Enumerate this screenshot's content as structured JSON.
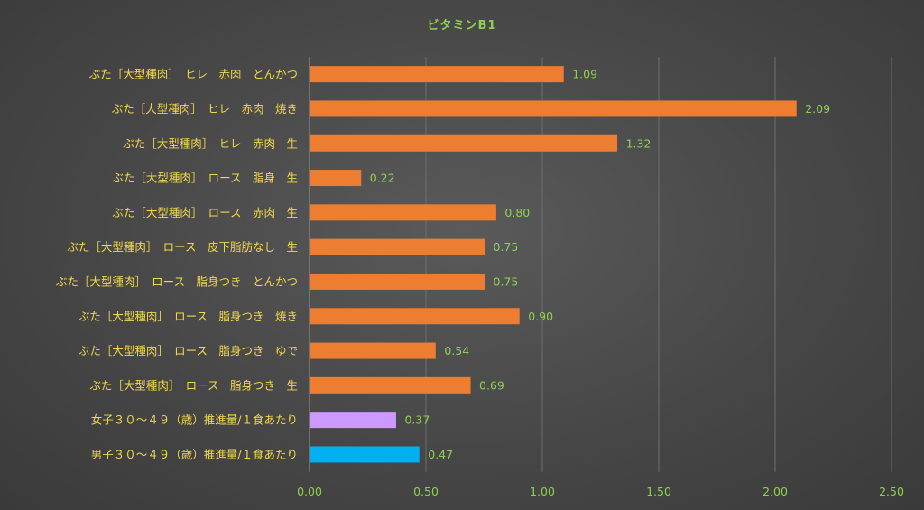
{
  "chart_data": {
    "type": "bar",
    "orientation": "horizontal",
    "title": "ビタミンB1",
    "xlabel": "",
    "ylabel": "",
    "xlim": [
      0,
      2.5
    ],
    "ticks": [
      "0.00",
      "0.50",
      "1.00",
      "1.50",
      "2.00",
      "2.50"
    ],
    "tick_values": [
      0,
      0.5,
      1.0,
      1.5,
      2.0,
      2.5
    ],
    "grid": true,
    "legend": "none",
    "colors": {
      "meat": "#ed7d31",
      "female": "#cc99ff",
      "male": "#00b0f0"
    },
    "bars": [
      {
        "category": "ぶた［大型種肉］　ヒレ　赤肉　とんかつ",
        "value": 1.09,
        "label": "1.09",
        "color_key": "meat"
      },
      {
        "category": "ぶた［大型種肉］　ヒレ　赤肉　焼き",
        "value": 2.09,
        "label": "2.09",
        "color_key": "meat"
      },
      {
        "category": "ぶた［大型種肉］　ヒレ　赤肉　生",
        "value": 1.32,
        "label": "1.32",
        "color_key": "meat"
      },
      {
        "category": "ぶた［大型種肉］　ロース　脂身　生",
        "value": 0.22,
        "label": "0.22",
        "color_key": "meat"
      },
      {
        "category": "ぶた［大型種肉］　ロース　赤肉　生",
        "value": 0.8,
        "label": "0.80",
        "color_key": "meat"
      },
      {
        "category": "ぶた［大型種肉］　ロース　皮下脂肪なし　生",
        "value": 0.75,
        "label": "0.75",
        "color_key": "meat"
      },
      {
        "category": "ぶた［大型種肉］　ロース　脂身つき　とんかつ",
        "value": 0.75,
        "label": "0.75",
        "color_key": "meat"
      },
      {
        "category": "ぶた［大型種肉］　ロース　脂身つき　焼き",
        "value": 0.9,
        "label": "0.90",
        "color_key": "meat"
      },
      {
        "category": "ぶた［大型種肉］　ロース　脂身つき　ゆで",
        "value": 0.54,
        "label": "0.54",
        "color_key": "meat"
      },
      {
        "category": "ぶた［大型種肉］　ロース　脂身つき　生",
        "value": 0.69,
        "label": "0.69",
        "color_key": "meat"
      },
      {
        "category": "女子３０～４９（歳）推進量/１食あたり",
        "value": 0.37,
        "label": "0.37",
        "color_key": "female"
      },
      {
        "category": "男子３０～４９（歳）推進量/１食あたり",
        "value": 0.47,
        "label": "0.47",
        "color_key": "male"
      }
    ]
  }
}
